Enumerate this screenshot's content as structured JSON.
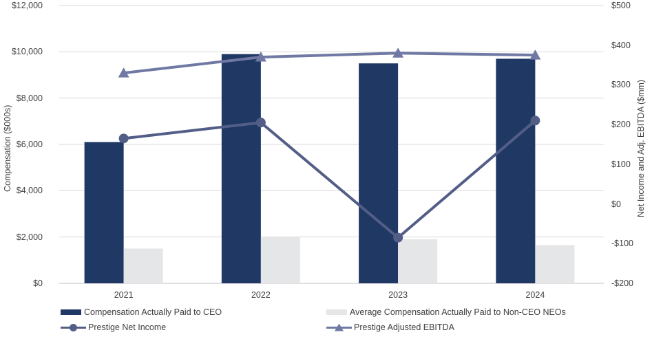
{
  "chart_data": {
    "type": "combo-bar-line",
    "categories": [
      "2021",
      "2022",
      "2023",
      "2024"
    ],
    "series": [
      {
        "name": "Compensation Actually Paid to CEO",
        "type": "bar",
        "axis": "left",
        "color": "#1F3864",
        "values": [
          6100,
          9900,
          9500,
          9700
        ]
      },
      {
        "name": "Average Compensation Actually Paid to Non-CEO NEOs",
        "type": "bar",
        "axis": "left",
        "color": "#E5E6E8",
        "values": [
          1500,
          2000,
          1900,
          1650
        ]
      },
      {
        "name": "Prestige Net Income",
        "type": "line",
        "marker": "circle",
        "axis": "right",
        "color": "#535E87",
        "values": [
          165,
          205,
          -85,
          210
        ]
      },
      {
        "name": "Prestige Adjusted EBITDA",
        "type": "line",
        "marker": "triangle",
        "axis": "right",
        "color": "#6F79A4",
        "values": [
          330,
          370,
          380,
          375
        ]
      }
    ],
    "left_axis": {
      "title": "Compensation ($000s)",
      "min": 0,
      "max": 12000,
      "tick_values": [
        12000,
        10000,
        8000,
        6000,
        4000,
        2000,
        0
      ],
      "tick_labels": [
        "$12,000",
        "$10,000",
        "$8,000",
        "$6,000",
        "$4,000",
        "$2,000",
        "$0"
      ]
    },
    "right_axis": {
      "title": "Net Income and Adj. EBITDA ($mm)",
      "min": -200,
      "max": 500,
      "tick_values": [
        500,
        400,
        300,
        200,
        100,
        0,
        -100,
        -200
      ],
      "tick_labels": [
        "$500",
        "$400",
        "$300",
        "$200",
        "$100",
        "$0",
        "-$100",
        "-$200"
      ]
    },
    "grid": true,
    "grid_color": "#D9D9D9",
    "axis_line_color": "#C0C0C6",
    "legend_position": "bottom"
  }
}
